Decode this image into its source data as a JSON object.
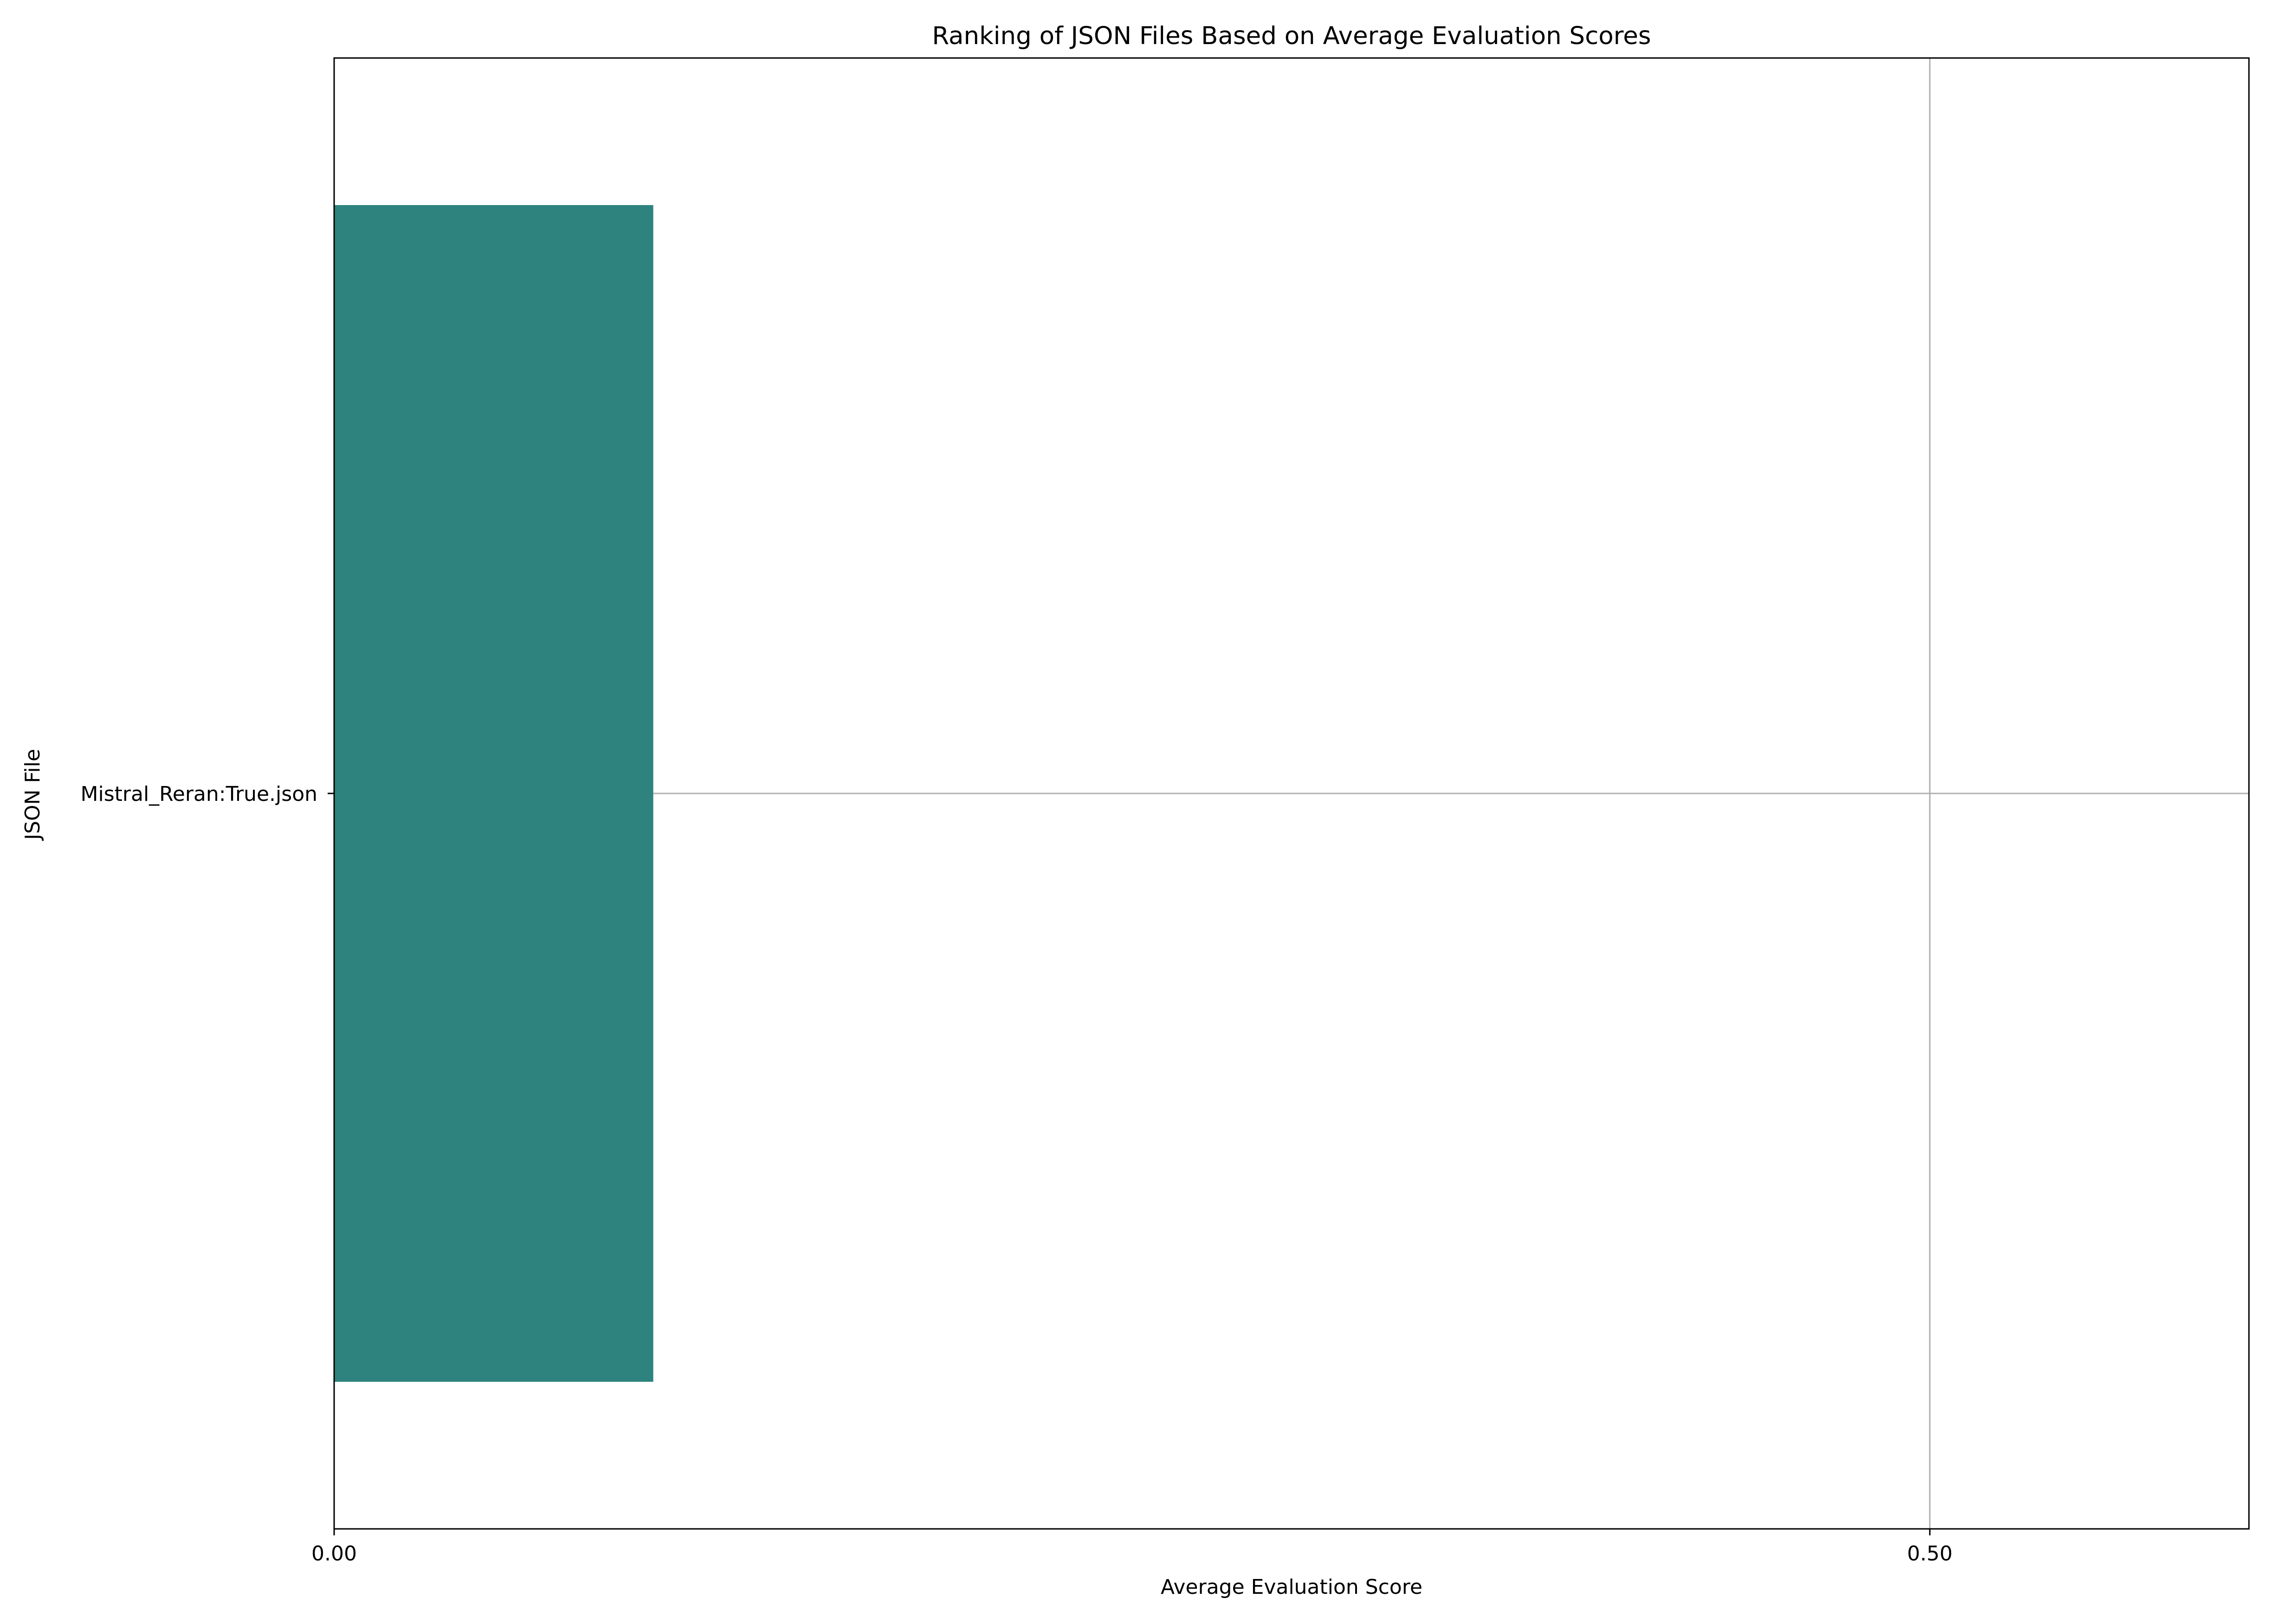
{
  "chart_data": {
    "type": "bar",
    "orientation": "horizontal",
    "title": "Ranking of JSON Files Based on Average Evaluation Scores",
    "xlabel": "Average Evaluation Score",
    "ylabel": "JSON File",
    "categories": [
      "Mistral_Reran:True.json"
    ],
    "values": [
      0.1
    ],
    "xlim": [
      0,
      0.6
    ],
    "xticks": [
      0.0,
      0.5
    ],
    "xtick_labels": [
      "0.00",
      "0.50"
    ],
    "grid": true,
    "bar_color": "#2e837e"
  }
}
